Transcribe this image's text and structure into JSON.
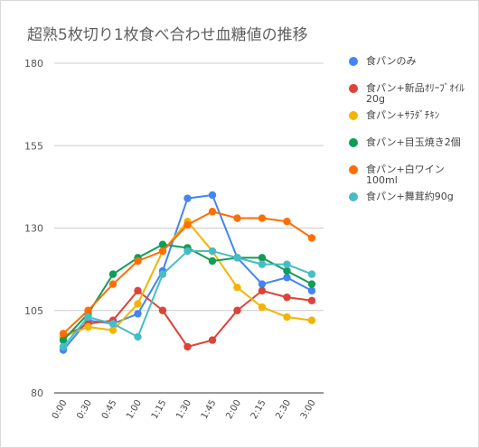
{
  "chart_data": {
    "type": "line",
    "title": "超熟5枚切り1枚食べ合わせ血糖値の推移",
    "categories": [
      "0:00",
      "0:30",
      "0:45",
      "1:00",
      "1:15",
      "1:30",
      "1:45",
      "2:00",
      "2:15",
      "2:30",
      "3:00"
    ],
    "ylim": [
      80,
      180
    ],
    "yticks": [
      "180",
      "155",
      "130",
      "105",
      "80"
    ],
    "grid": true,
    "legend_position": "right",
    "series": [
      {
        "name": "食パンのみ",
        "color": "#4285f4",
        "values": [
          93,
          102,
          101,
          104,
          117,
          139,
          140,
          121,
          113,
          115,
          111
        ]
      },
      {
        "name": "食パン+新品ｵﾘｰﾌﾞｵｲﾙ20g",
        "color": "#db4437",
        "values": [
          97,
          101,
          102,
          111,
          105,
          94,
          96,
          105,
          111,
          109,
          108
        ]
      },
      {
        "name": "食パン+ｻﾗﾀﾞﾁｷﾝ",
        "color": "#f4b400",
        "values": [
          97,
          100,
          99,
          107,
          123,
          132,
          123,
          112,
          106,
          103,
          102
        ]
      },
      {
        "name": "食パン+目玉焼き2個",
        "color": "#0f9d58",
        "values": [
          96,
          104,
          116,
          121,
          125,
          124,
          120,
          121,
          121,
          117,
          113
        ]
      },
      {
        "name": "食パン+白ワイン100ml",
        "color": "#ff6d01",
        "values": [
          98,
          105,
          113,
          120,
          123,
          131,
          135,
          133,
          133,
          132,
          127
        ]
      },
      {
        "name": "食パン+舞茸約90g",
        "color": "#46bdc6",
        "values": [
          94,
          103,
          101,
          97,
          116,
          123,
          123,
          121,
          119,
          119,
          116
        ]
      }
    ]
  }
}
